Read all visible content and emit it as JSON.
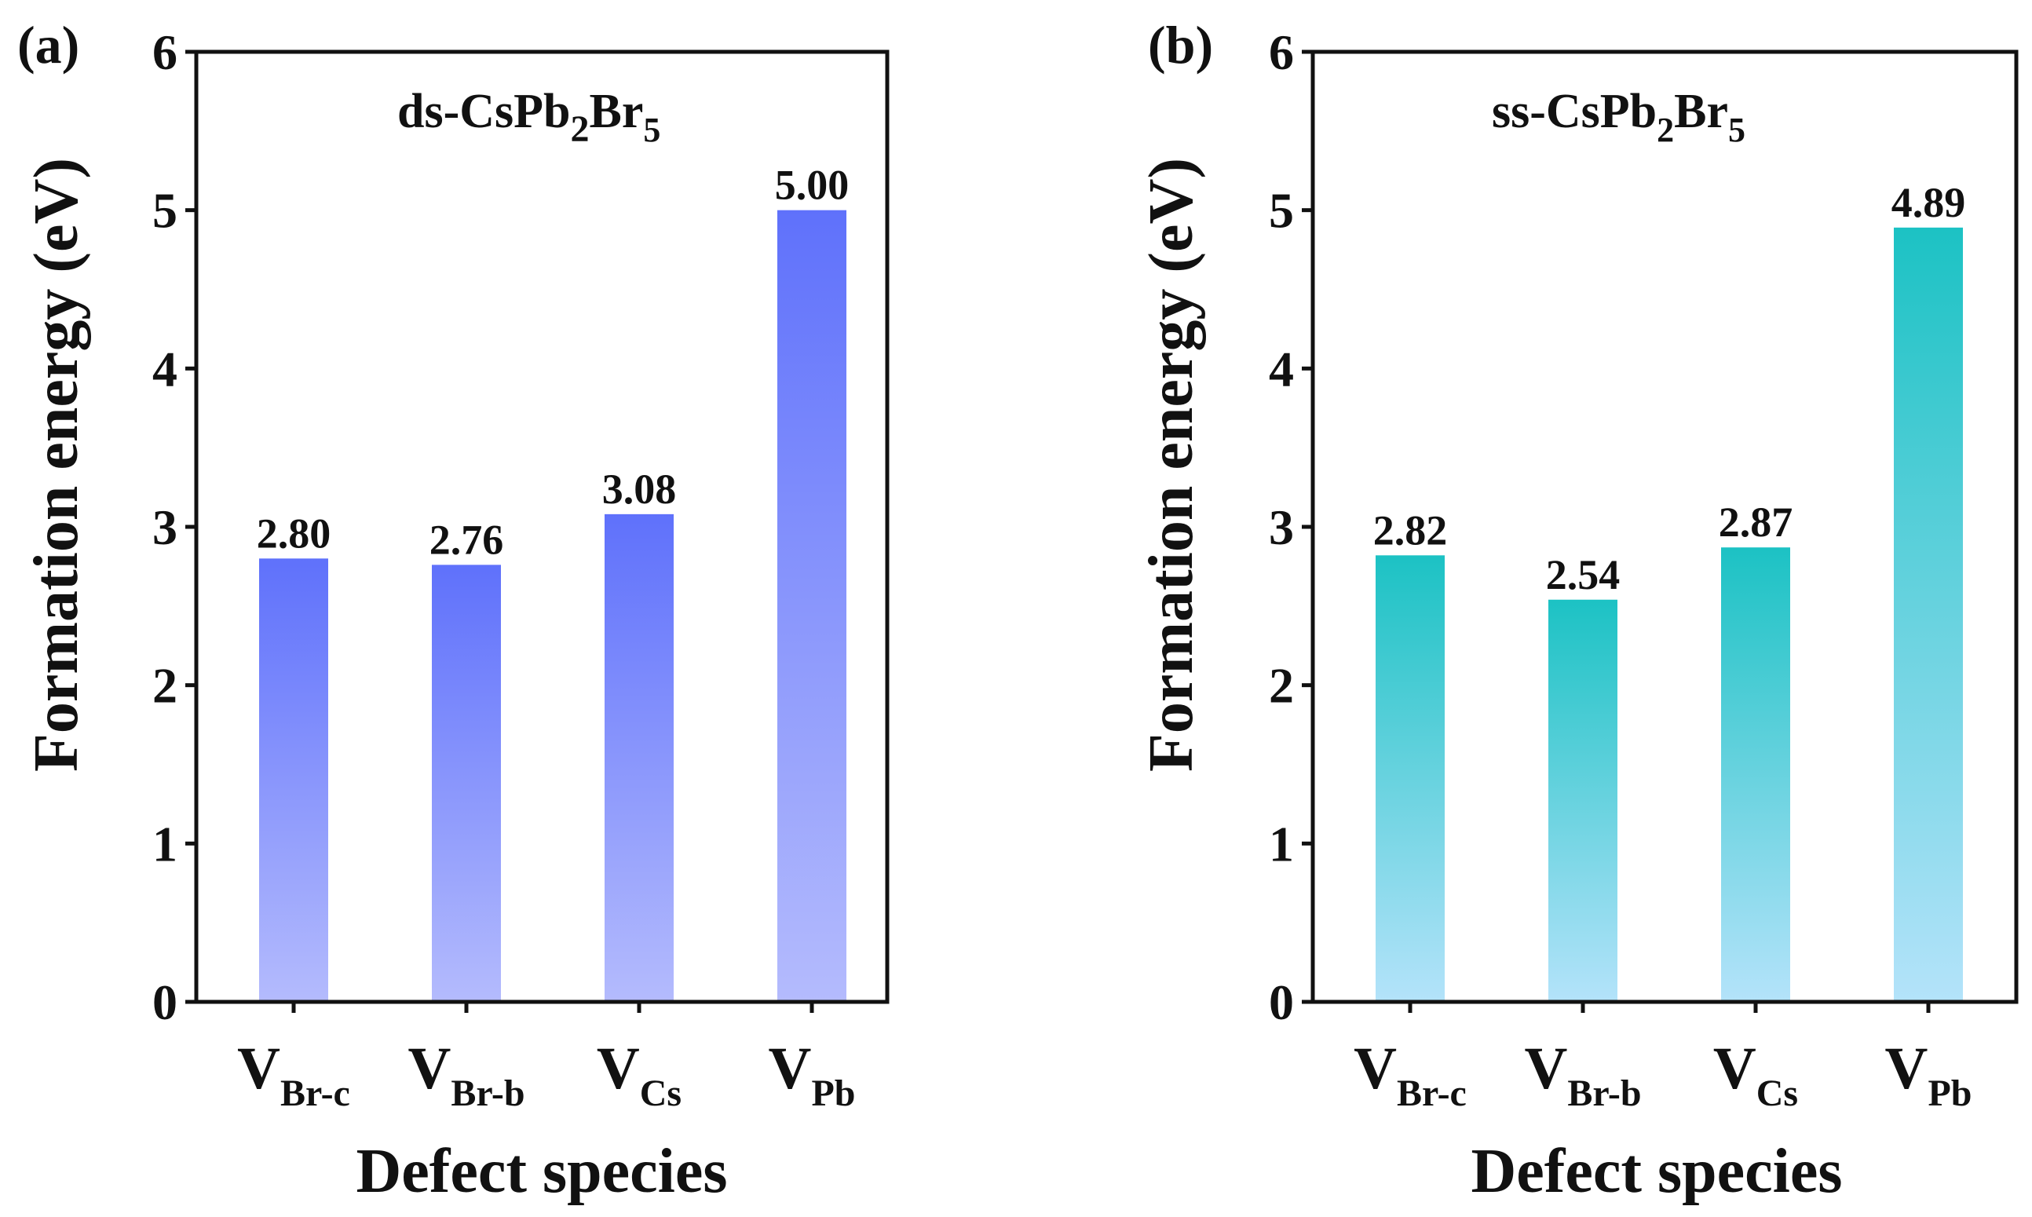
{
  "colors": {
    "panel_a_top": "#5f71fb",
    "panel_a_bottom": "#b4bbfd",
    "panel_b_top": "#1cc2c4",
    "panel_b_bottom": "#b4e3fa",
    "axis": "#111111"
  },
  "chart_data": [
    {
      "type": "bar",
      "panel_label": "(a)",
      "title": {
        "main": "ds-CsPb",
        "sub1": "2",
        "mid": "Br",
        "sub2": "5"
      },
      "xlabel": "Defect species",
      "ylabel": "Formation energy (eV)",
      "ylim": [
        0,
        6
      ],
      "yticks": [
        "0",
        "1",
        "2",
        "3",
        "4",
        "5",
        "6"
      ],
      "categories": [
        {
          "main": "V",
          "sub": "Br-c"
        },
        {
          "main": "V",
          "sub": "Br-b"
        },
        {
          "main": "V",
          "sub": "Cs"
        },
        {
          "main": "V",
          "sub": "Pb"
        }
      ],
      "values": [
        2.8,
        2.76,
        3.08,
        5.0
      ],
      "labels": [
        "2.80",
        "2.76",
        "3.08",
        "5.00"
      ]
    },
    {
      "type": "bar",
      "panel_label": "(b)",
      "title": {
        "main": "ss-CsPb",
        "sub1": "2",
        "mid": "Br",
        "sub2": "5"
      },
      "xlabel": "Defect species",
      "ylabel": "Formation energy (eV)",
      "ylim": [
        0,
        6
      ],
      "yticks": [
        "0",
        "1",
        "2",
        "3",
        "4",
        "5",
        "6"
      ],
      "categories": [
        {
          "main": "V",
          "sub": "Br-c"
        },
        {
          "main": "V",
          "sub": "Br-b"
        },
        {
          "main": "V",
          "sub": "Cs"
        },
        {
          "main": "V",
          "sub": "Pb"
        }
      ],
      "values": [
        2.82,
        2.54,
        2.87,
        4.89
      ],
      "labels": [
        "2.82",
        "2.54",
        "2.87",
        "4.89"
      ]
    }
  ]
}
